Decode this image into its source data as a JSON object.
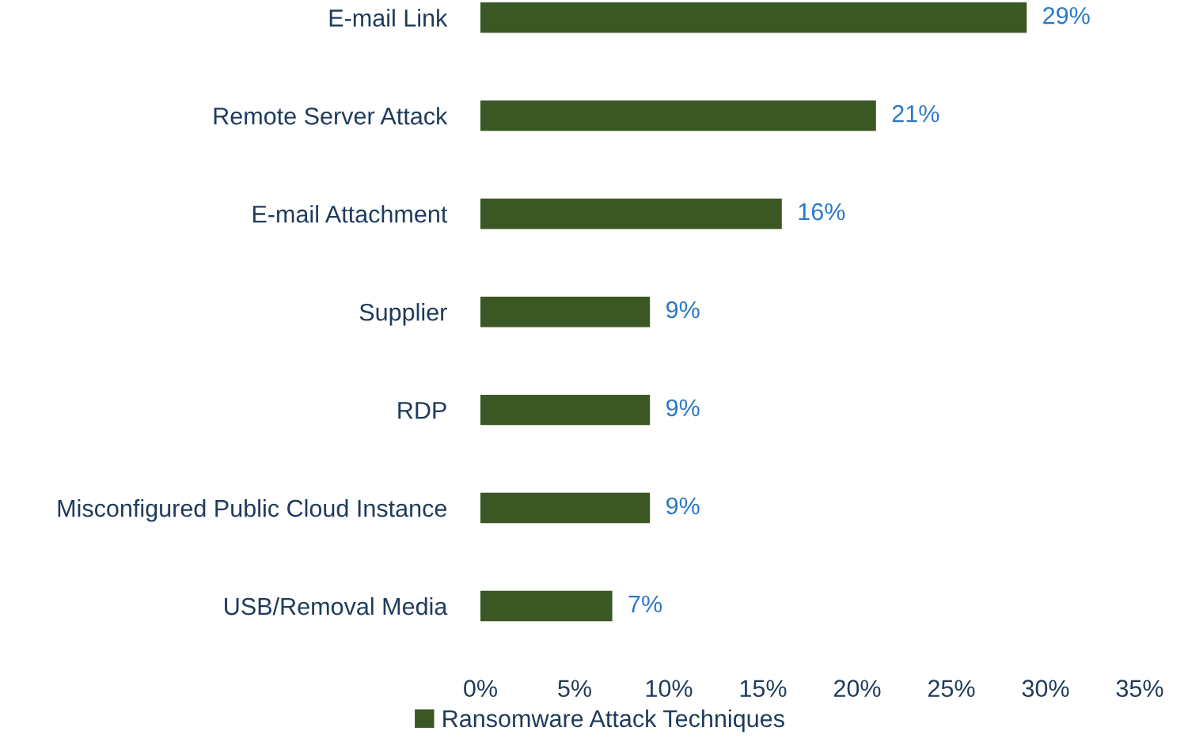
{
  "chart_data": {
    "type": "bar",
    "orientation": "horizontal",
    "categories": [
      "E-mail Link",
      "Remote Server Attack",
      "E-mail Attachment",
      "Supplier",
      "RDP",
      "Misconfigured Public Cloud Instance",
      "USB/Removal Media"
    ],
    "series": [
      {
        "name": "Ransomware Attack Techniques",
        "color": "#3b5724",
        "values": [
          29,
          21,
          16,
          9,
          9,
          9,
          7
        ],
        "value_labels": [
          "29%",
          "21%",
          "16%",
          "9%",
          "9%",
          "9%",
          "7%"
        ]
      }
    ],
    "xlim": [
      0,
      35
    ],
    "xticks": [
      {
        "value": 0,
        "label": "0%"
      },
      {
        "value": 5,
        "label": "5%"
      },
      {
        "value": 10,
        "label": "10%"
      },
      {
        "value": 15,
        "label": "15%"
      },
      {
        "value": 20,
        "label": "20%"
      },
      {
        "value": 25,
        "label": "25%"
      },
      {
        "value": 30,
        "label": "30%"
      },
      {
        "value": 35,
        "label": "35%"
      }
    ],
    "grid": false,
    "legend": "bottom"
  }
}
